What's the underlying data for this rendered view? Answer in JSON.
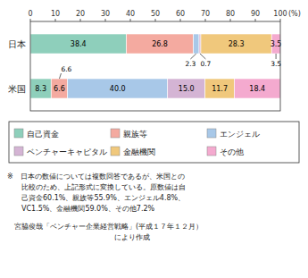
{
  "chart_data": {
    "type": "bar",
    "orientation": "horizontal",
    "stacked": true,
    "data_labels": true,
    "grid": false,
    "categories": [
      "日本",
      "米国"
    ],
    "series": [
      {
        "name": "自己資金",
        "color": "#8ecfbb",
        "values": [
          38.4,
          8.3
        ],
        "value_labels": [
          "38.4",
          "8.3"
        ]
      },
      {
        "name": "親族等",
        "color": "#f4aaa0",
        "values": [
          26.8,
          6.6
        ],
        "value_labels": [
          "26.8",
          "6.6"
        ]
      },
      {
        "name": "エンジェル",
        "color": "#a8c8e8",
        "values": [
          2.3,
          40.0
        ],
        "value_labels": [
          null,
          "40.0"
        ]
      },
      {
        "name": "ベンチャーキャピタル",
        "color": "#d4b4d4",
        "values": [
          0.7,
          15.0
        ],
        "value_labels": [
          null,
          "15.0"
        ]
      },
      {
        "name": "金融機関",
        "color": "#f0c87c",
        "values": [
          28.3,
          11.7
        ],
        "value_labels": [
          "28.3",
          "11.7"
        ]
      },
      {
        "name": "その他",
        "color": "#f4aacf",
        "values": [
          3.5,
          18.4
        ],
        "value_labels": [
          "3.5",
          "18.4"
        ]
      }
    ],
    "annotations": [
      {
        "text": "2.3",
        "series": 2,
        "category": 0
      },
      {
        "text": "0.7",
        "series": 3,
        "category": 0
      },
      {
        "text": "3.5",
        "series": 5,
        "category": 0
      },
      {
        "text": "6.6",
        "series": 1,
        "category": 1
      }
    ],
    "xlim": [
      0,
      100
    ],
    "xticks": [
      0,
      10,
      20,
      30,
      40,
      50,
      60,
      70,
      80,
      90,
      100
    ],
    "xlabel": "(%)",
    "notes": [
      "※　日本の数値については複数回答であるが、米国との",
      "　　比較のため、上記形式に変換している。原数値は自",
      "　　己資金60.1%、親族等55.9%、エンジェル4.8%、",
      "　　VC1.5%、金融機関59.0%、その他7.2%"
    ],
    "source": [
      "　宮脇俊哉「ベンチャー企業経営戦略」(平成１７年１２月）",
      "　　　　　　　　　　　　　　　により作成"
    ]
  }
}
